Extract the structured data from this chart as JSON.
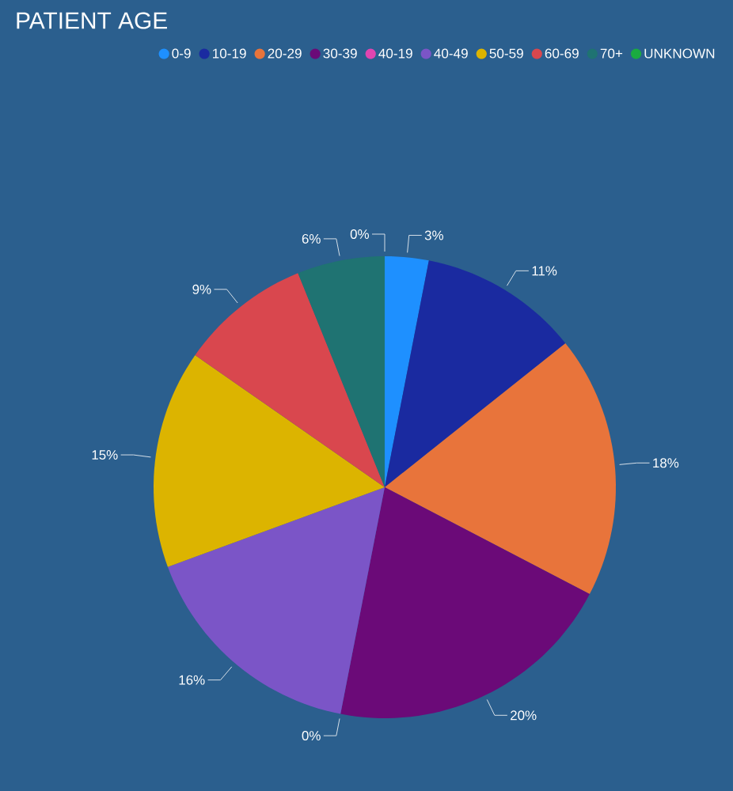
{
  "chart_data": {
    "type": "pie",
    "title": "PATIENT AGE",
    "categories": [
      "0-9",
      "10-19",
      "20-29",
      "30-39",
      "40-19",
      "40-49",
      "50-59",
      "60-69",
      "70+",
      "UNKNOWN"
    ],
    "values": [
      3,
      11,
      18,
      20,
      0,
      16,
      15,
      9,
      6,
      0
    ],
    "value_labels": [
      "3%",
      "11%",
      "18%",
      "20%",
      "0%",
      "16%",
      "15%",
      "9%",
      "6%",
      "0%"
    ],
    "colors": [
      "#1e90ff",
      "#1a2aa0",
      "#e8743b",
      "#6b0a78",
      "#e045b0",
      "#7b55c7",
      "#dcb400",
      "#d9474e",
      "#1f7372",
      "#1aab40"
    ],
    "legend": "top"
  }
}
